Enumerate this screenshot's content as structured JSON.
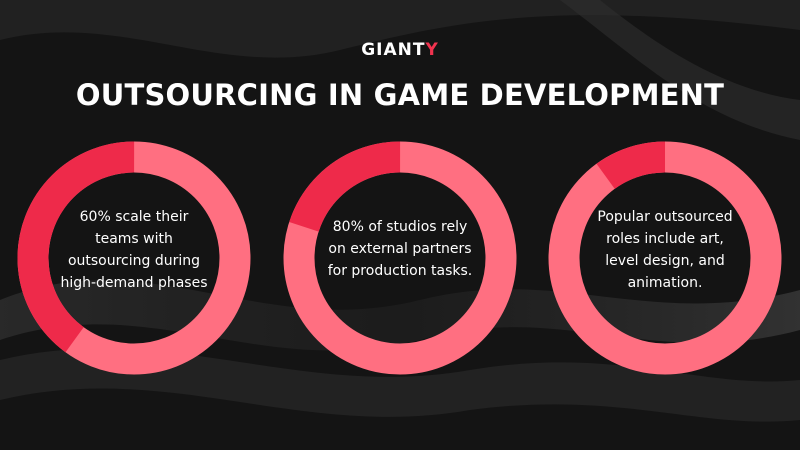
{
  "header": {
    "logo_main": "GIANT",
    "logo_accent": "Y",
    "title": "OUTSOURCING IN GAME DEVELOPMENT"
  },
  "colors": {
    "background": "#141414",
    "ring_light": "#ff6f81",
    "ring_dark": "#ee2a4a",
    "logo_accent": "#f0334f",
    "text": "#ffffff"
  },
  "chart_data": [
    {
      "type": "pie",
      "style": "donut",
      "categories": [
        "highlighted",
        "rest"
      ],
      "values": [
        40,
        60
      ],
      "annotation": "60% scale their teams with outsourcing during high-demand phases"
    },
    {
      "type": "pie",
      "style": "donut",
      "categories": [
        "highlighted",
        "rest"
      ],
      "values": [
        20,
        80
      ],
      "annotation": "80% of studios rely on external partners for production tasks."
    },
    {
      "type": "pie",
      "style": "donut",
      "categories": [
        "highlighted",
        "rest"
      ],
      "values": [
        10,
        90
      ],
      "annotation": "Popular outsourced roles include art, level design, and animation."
    }
  ]
}
